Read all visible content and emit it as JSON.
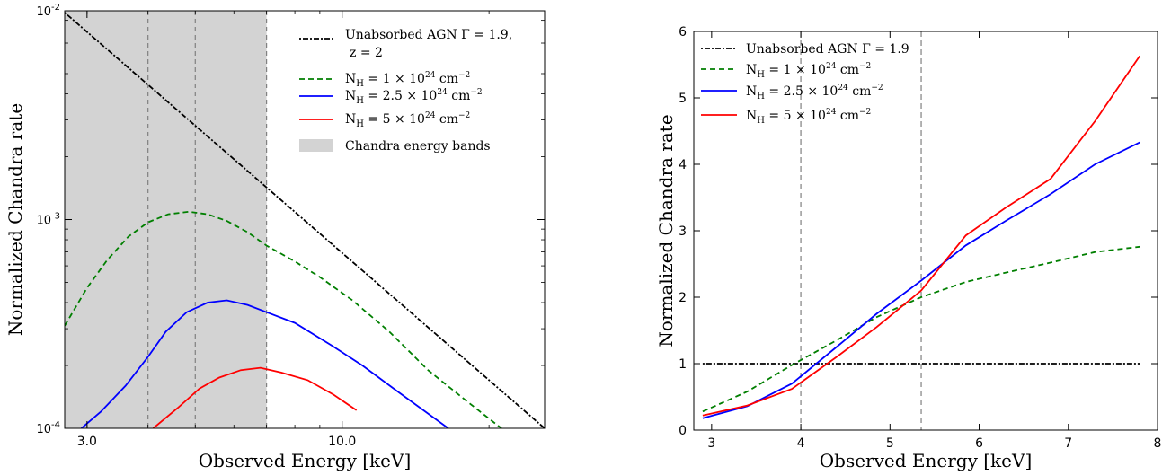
{
  "chart_data": [
    {
      "type": "line",
      "xlabel": "Observed Energy [keV]",
      "ylabel": "Normalized Chandra rate",
      "xscale": "log",
      "yscale": "log",
      "xlim": [
        2.7,
        26
      ],
      "ylim": [
        0.0001,
        0.01
      ],
      "xticks": [
        {
          "value": 3.0,
          "label": "3.0"
        },
        {
          "value": 10.0,
          "label": "10.0"
        }
      ],
      "yticks": [
        {
          "value": 0.0001,
          "base": "10",
          "exp": "-4"
        },
        {
          "value": 0.001,
          "base": "10",
          "exp": "-3"
        },
        {
          "value": 0.01,
          "base": "10",
          "exp": "-2"
        }
      ],
      "shaded_band": {
        "x0": 2.7,
        "x1": 7.0,
        "color": "#d3d3d3",
        "label": "Chandra energy bands"
      },
      "vlines": [
        4.0,
        5.0,
        7.0
      ],
      "legend_position": "upper right",
      "series": [
        {
          "name": "Unabsorbed AGN Γ = 1.9,",
          "name_line2": "z = 2",
          "color": "#000000",
          "dash": "2,2,6,2",
          "x": [
            2.7,
            26
          ],
          "y": [
            0.0098,
            0.0001
          ]
        },
        {
          "name": "N_H = 1×10^24 cm^-2",
          "label_base": "N",
          "label_sub": "H",
          "label_rest": " = 1 × 10",
          "label_sup": "24",
          "label_unit": " cm",
          "label_unit_sup": "−2",
          "color": "#007f00",
          "dash": "6,4",
          "x": [
            2.7,
            3.0,
            3.3,
            3.65,
            4.0,
            4.4,
            4.85,
            5.3,
            5.8,
            6.4,
            7.0,
            8.0,
            9.0,
            10.5,
            12.5,
            15.0,
            18.0,
            21.2
          ],
          "y": [
            0.00031,
            0.00047,
            0.00064,
            0.00083,
            0.00097,
            0.00106,
            0.00109,
            0.00106,
            0.000985,
            0.00087,
            0.00075,
            0.00063,
            0.00053,
            0.00041,
            0.00029,
            0.00019,
            0.000135,
            0.0001
          ]
        },
        {
          "name": "N_H = 2.5×10^24 cm^-2",
          "label_base": "N",
          "label_sub": "H",
          "label_rest": " = 2.5 × 10",
          "label_sup": "24",
          "label_unit": " cm",
          "label_unit_sup": "−2",
          "color": "#0000ff",
          "dash": "",
          "x": [
            2.92,
            3.2,
            3.6,
            4.0,
            4.35,
            4.8,
            5.3,
            5.8,
            6.4,
            7.0,
            8.0,
            9.5,
            11.0,
            13.0,
            16.5
          ],
          "y": [
            0.0001,
            0.00012,
            0.00016,
            0.00022,
            0.00029,
            0.00036,
            0.0004,
            0.00041,
            0.00039,
            0.00036,
            0.00032,
            0.00025,
            0.0002,
            0.00015,
            0.0001
          ]
        },
        {
          "name": "N_H = 5×10^24 cm^-2",
          "label_base": "N",
          "label_sub": "H",
          "label_rest": " = 5 × 10",
          "label_sup": "24",
          "label_unit": " cm",
          "label_unit_sup": "−2",
          "color": "#ff0000",
          "dash": "",
          "x": [
            4.1,
            4.6,
            5.1,
            5.6,
            6.2,
            6.8,
            7.5,
            8.5,
            9.6,
            10.7
          ],
          "y": [
            0.0001,
            0.000125,
            0.000155,
            0.000175,
            0.00019,
            0.000195,
            0.000185,
            0.00017,
            0.000145,
            0.000122
          ]
        }
      ]
    },
    {
      "type": "line",
      "xlabel": "Observed Energy [keV]",
      "ylabel": "Normalized Chandra rate",
      "xlim": [
        2.8,
        8.0
      ],
      "ylim": [
        0,
        6
      ],
      "xticks": [
        3,
        4,
        5,
        6,
        7,
        8
      ],
      "yticks": [
        0,
        1,
        2,
        3,
        4,
        5,
        6
      ],
      "vlines": [
        4.0,
        5.35
      ],
      "legend_position": "upper left",
      "series": [
        {
          "name": "Unabsorbed AGN Γ = 1.9",
          "color": "#000000",
          "dash": "2,2,6,2",
          "x": [
            2.9,
            7.8
          ],
          "y": [
            1.0,
            1.0
          ]
        },
        {
          "name": "N_H = 1×10^24 cm^-2",
          "label_base": "N",
          "label_sub": "H",
          "label_rest": " = 1 × 10",
          "label_sup": "24",
          "label_unit": " cm",
          "label_unit_sup": "−2",
          "color": "#007f00",
          "dash": "6,4",
          "x": [
            2.9,
            3.4,
            3.9,
            4.4,
            4.85,
            5.35,
            5.85,
            6.3,
            6.8,
            7.3,
            7.8
          ],
          "y": [
            0.28,
            0.58,
            0.98,
            1.35,
            1.7,
            2.0,
            2.23,
            2.37,
            2.52,
            2.68,
            2.76
          ]
        },
        {
          "name": "N_H = 2.5×10^24 cm^-2",
          "label_base": "N",
          "label_sub": "H",
          "label_rest": " = 2.5 × 10",
          "label_sup": "24",
          "label_unit": " cm",
          "label_unit_sup": "−2",
          "color": "#0000ff",
          "dash": "",
          "x": [
            2.9,
            3.4,
            3.9,
            4.4,
            4.85,
            5.35,
            5.85,
            6.3,
            6.8,
            7.3,
            7.8
          ],
          "y": [
            0.18,
            0.36,
            0.7,
            1.25,
            1.75,
            2.25,
            2.78,
            3.15,
            3.55,
            4.0,
            4.33
          ]
        },
        {
          "name": "N_H = 5×10^24 cm^-2",
          "label_base": "N",
          "label_sub": "H",
          "label_rest": " = 5 × 10",
          "label_sup": "24",
          "label_unit": " cm",
          "label_unit_sup": "−2",
          "color": "#ff0000",
          "dash": "",
          "x": [
            2.9,
            3.4,
            3.9,
            4.4,
            4.85,
            5.35,
            5.85,
            6.3,
            6.8,
            7.3,
            7.8
          ],
          "y": [
            0.22,
            0.37,
            0.62,
            1.1,
            1.55,
            2.1,
            2.93,
            3.35,
            3.78,
            4.65,
            5.63
          ]
        }
      ]
    }
  ]
}
